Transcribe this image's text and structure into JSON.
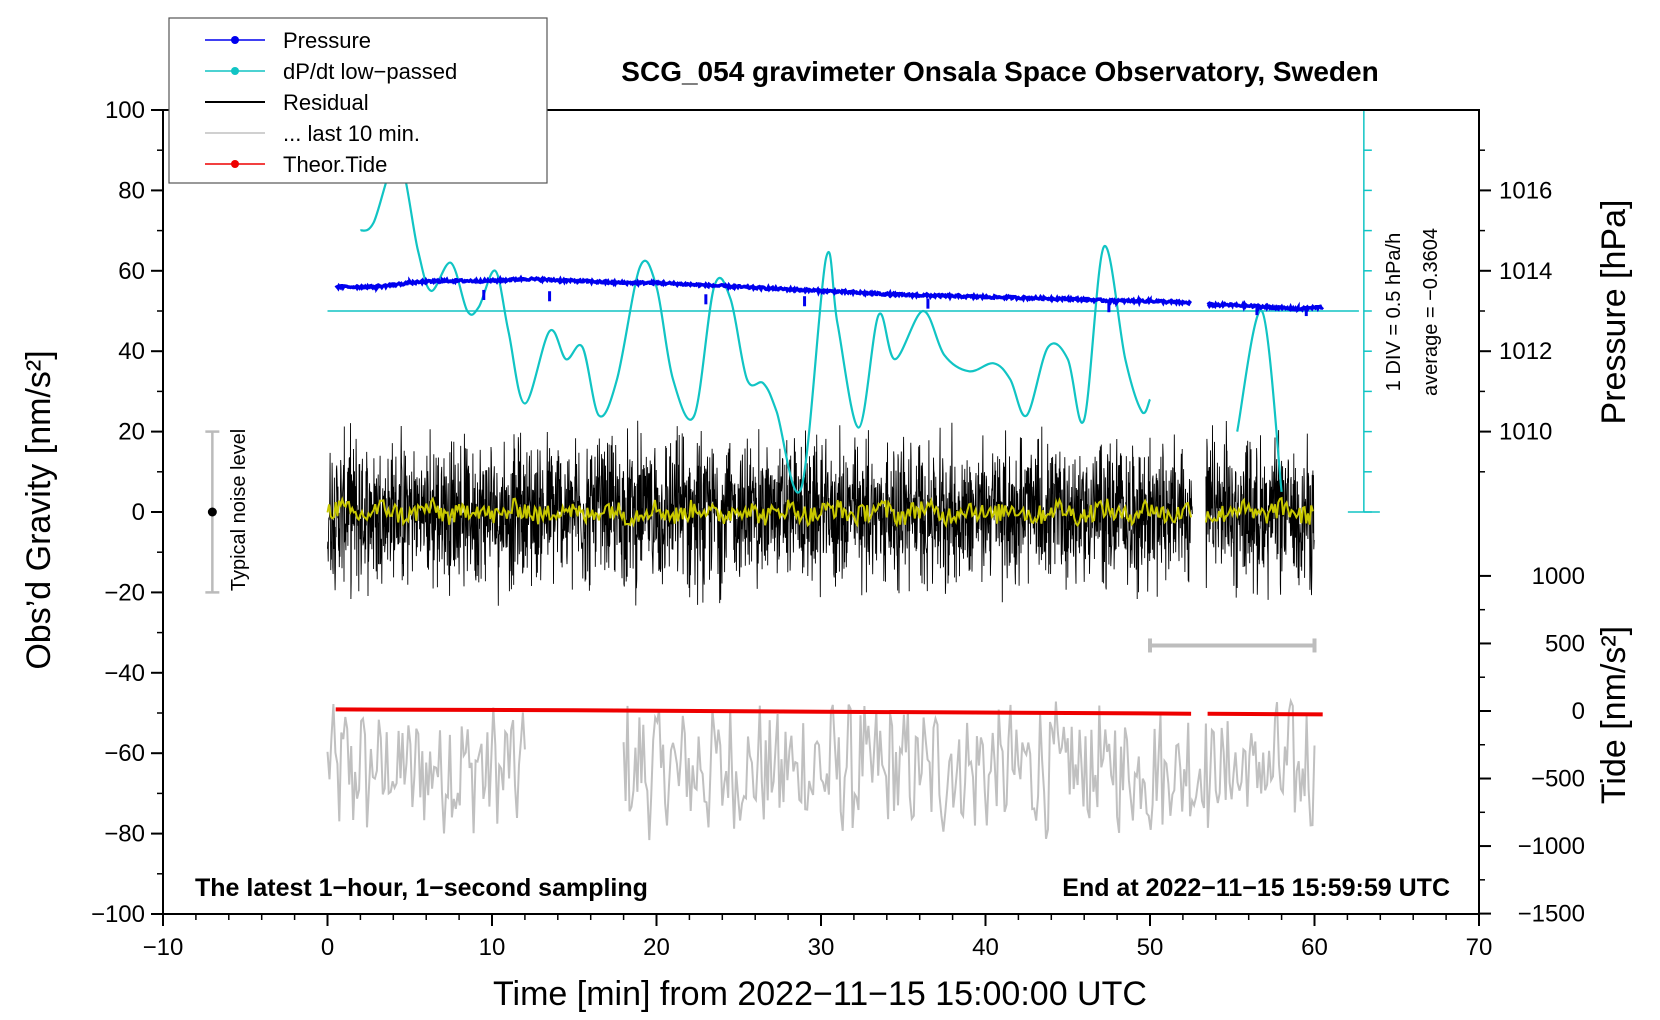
{
  "chart_data": {
    "type": "line",
    "title": "SCG_054 gravimeter Onsala Space Observatory, Sweden",
    "xlabel": "Time [min] from 2022−11−15 15:00:00 UTC",
    "ylabel_left": "Obs’d Gravity [nm/s²]",
    "ylabel_right_top": "Pressure [hPa]",
    "ylabel_right_bottom": "Tide [nm/s²]",
    "xlim": [
      -10,
      70
    ],
    "ylim": [
      -100,
      100
    ],
    "x_ticks": [
      {
        "v": -10,
        "t": "−10"
      },
      {
        "v": 0,
        "t": "0"
      },
      {
        "v": 10,
        "t": "10"
      },
      {
        "v": 20,
        "t": "20"
      },
      {
        "v": 30,
        "t": "30"
      },
      {
        "v": 40,
        "t": "40"
      },
      {
        "v": 50,
        "t": "50"
      },
      {
        "v": 60,
        "t": "60"
      },
      {
        "v": 70,
        "t": "70"
      }
    ],
    "y_ticks": [
      {
        "v": 100,
        "t": "100"
      },
      {
        "v": 80,
        "t": "80"
      },
      {
        "v": 60,
        "t": "60"
      },
      {
        "v": 40,
        "t": "40"
      },
      {
        "v": 20,
        "t": "20"
      },
      {
        "v": 0,
        "t": "0"
      },
      {
        "v": -20,
        "t": "−20"
      },
      {
        "v": -40,
        "t": "−40"
      },
      {
        "v": -60,
        "t": "−60"
      },
      {
        "v": -80,
        "t": "−80"
      },
      {
        "v": -100,
        "t": "−100"
      }
    ],
    "pressure_ticks": [
      {
        "v": 1016,
        "t": "1016"
      },
      {
        "v": 1014,
        "t": "1014"
      },
      {
        "v": 1012,
        "t": "1012"
      },
      {
        "v": 1010,
        "t": "1010"
      }
    ],
    "tide_ticks": [
      {
        "v": 1000,
        "t": "1000"
      },
      {
        "v": 500,
        "t": "500"
      },
      {
        "v": 0,
        "t": "0"
      },
      {
        "v": -500,
        "t": "−500"
      },
      {
        "v": -1000,
        "t": "−1000"
      },
      {
        "v": -1500,
        "t": "−1500"
      }
    ],
    "legend": [
      {
        "name": "Pressure",
        "color": "#0000ee",
        "marker": true
      },
      {
        "name": "dP/dt low−passed",
        "color": "#11c4c4",
        "marker": true
      },
      {
        "name": "Residual",
        "color": "#000000",
        "marker": false
      },
      {
        "name": "... last 10 min.",
        "color": "#c0c0c0",
        "marker": false
      },
      {
        "name": "Theor.Tide",
        "color": "#ee0000",
        "marker": true
      }
    ],
    "pressure_series": {
      "color": "#0000ee",
      "segments": [
        {
          "x": [
            0.5,
            3,
            5,
            7,
            10,
            12,
            15,
            18,
            20,
            25,
            30,
            35,
            40,
            45,
            48,
            50,
            52.5
          ],
          "y": [
            1013.6,
            1013.6,
            1013.7,
            1013.75,
            1013.75,
            1013.8,
            1013.75,
            1013.7,
            1013.7,
            1013.6,
            1013.5,
            1013.4,
            1013.35,
            1013.3,
            1013.25,
            1013.25,
            1013.2
          ]
        },
        {
          "x": [
            53.5,
            55,
            57,
            59,
            60.5
          ],
          "y": [
            1013.15,
            1013.15,
            1013.1,
            1013.05,
            1013.1
          ]
        }
      ]
    },
    "dpdt_series": {
      "color": "#11c4c4",
      "segments": [
        {
          "x": [
            2,
            2.8,
            4.3,
            5.5,
            6.3,
            7.5,
            8.5,
            9.2,
            10.2,
            11,
            12,
            13.5,
            14.5,
            15.5,
            16.5,
            17.6,
            19,
            20,
            21,
            22.3,
            23.5,
            24.5,
            25.5,
            26.5,
            27.3,
            28.8,
            30.3,
            31,
            32.3,
            33.5,
            34.5,
            36.2,
            37.5,
            39,
            40.5,
            41.5,
            42.5,
            43.8,
            45,
            46,
            47.2,
            48.5,
            49.5,
            50
          ],
          "y": [
            70,
            72,
            88,
            65,
            55,
            62,
            50,
            51,
            60,
            45,
            27,
            45,
            38,
            41,
            24,
            33,
            61,
            56,
            33,
            24,
            56,
            53,
            33,
            32,
            25,
            6,
            63,
            47,
            21,
            49,
            38,
            50,
            39,
            35,
            37,
            33,
            24,
            41,
            38,
            23,
            66,
            38,
            25,
            28
          ]
        },
        {
          "x": [
            55.3,
            56.8,
            58
          ],
          "y": [
            20,
            50,
            5
          ]
        }
      ],
      "axis_label": "1 DIV = 0.5 hPa/h",
      "average_label": "average = −0.3604"
    },
    "dpdt_reference_line_y": 50,
    "residual_series": {
      "color": "#000000",
      "x_range": [
        0,
        60
      ],
      "gap": [
        52.6,
        53.4
      ],
      "amplitude": 24
    },
    "residual_smoothed": {
      "color": "#c8c800"
    },
    "last10_series": {
      "color": "#c0c0c0",
      "segments": [
        [
          0,
          12
        ],
        [
          18,
          60
        ]
      ],
      "center": -64,
      "amplitude": 14
    },
    "tide_series": {
      "color": "#ee0000",
      "segments": [
        {
          "x": [
            0.5,
            15,
            30,
            45,
            52.5
          ],
          "y": [
            12,
            5,
            -5,
            -15,
            -20
          ]
        },
        {
          "x": [
            53.5,
            60.5
          ],
          "y": [
            -20,
            -25
          ]
        }
      ]
    },
    "noise_bar": {
      "label": "Typical noise level",
      "range": [
        -20,
        20
      ],
      "x": -7
    }
  },
  "annotations": {
    "bottom_left": "The latest 1−hour, 1−second sampling",
    "bottom_right": "End at 2022−11−15 15:59:59 UTC"
  }
}
